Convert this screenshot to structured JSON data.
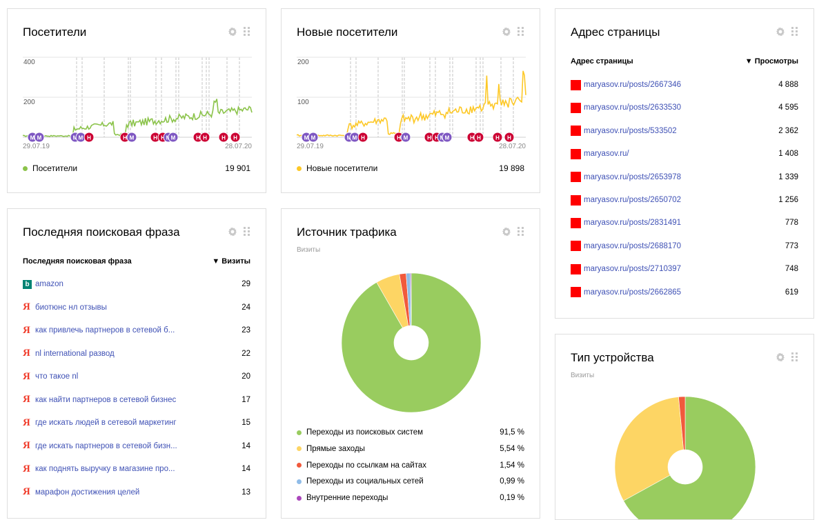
{
  "colors": {
    "green": "#8bc34a",
    "yellow": "#fdc826",
    "red": "#f44336",
    "blue": "#8ab4f8",
    "purple": "#ab47bc",
    "pie_green": "#99cc5f",
    "pie_yellow": "#fdd564",
    "pie_red": "#f15a3c",
    "pie_blue": "#90bce8",
    "link": "#3f51b5",
    "marker_m": "#7e57c2",
    "marker_h": "#cc0033"
  },
  "visitors": {
    "title": "Посетители",
    "y_ticks": [
      "400",
      "200"
    ],
    "date_start": "29.07.19",
    "date_end": "28.07.20",
    "legend_label": "Посетители",
    "legend_value": "19 901",
    "marker_m": "М",
    "marker_h": "Н"
  },
  "new_visitors": {
    "title": "Новые посетители",
    "y_ticks": [
      "200",
      "100"
    ],
    "date_start": "29.07.19",
    "date_end": "28.07.20",
    "legend_label": "Новые посетители",
    "legend_value": "19 898"
  },
  "page_address": {
    "title": "Адрес страницы",
    "col_name": "Адрес страницы",
    "col_value": "▼ Просмотры",
    "rows": [
      {
        "url": "maryasov.ru/posts/2667346",
        "views": "4 888"
      },
      {
        "url": "maryasov.ru/posts/2633530",
        "views": "4 595"
      },
      {
        "url": "maryasov.ru/posts/533502",
        "views": "2 362"
      },
      {
        "url": "maryasov.ru/",
        "views": "1 408"
      },
      {
        "url": "maryasov.ru/posts/2653978",
        "views": "1 339"
      },
      {
        "url": "maryasov.ru/posts/2650702",
        "views": "1 256"
      },
      {
        "url": "maryasov.ru/posts/2831491",
        "views": "778"
      },
      {
        "url": "maryasov.ru/posts/2688170",
        "views": "773"
      },
      {
        "url": "maryasov.ru/posts/2710397",
        "views": "748"
      },
      {
        "url": "maryasov.ru/posts/2662865",
        "views": "619"
      }
    ]
  },
  "search_phrase": {
    "title": "Последняя поисковая фраза",
    "col_name": "Последняя поисковая фраза",
    "col_value": "▼ Визиты",
    "bing_letter": "b",
    "yandex_letter": "Я",
    "rows": [
      {
        "engine": "bing",
        "phrase": "amazon",
        "visits": "29"
      },
      {
        "engine": "yandex",
        "phrase": "биотюнс нл отзывы",
        "visits": "24"
      },
      {
        "engine": "yandex",
        "phrase": "как привлечь партнеров в сетевой б...",
        "visits": "23"
      },
      {
        "engine": "yandex",
        "phrase": "nl international развод",
        "visits": "22"
      },
      {
        "engine": "yandex",
        "phrase": "что такое nl",
        "visits": "20"
      },
      {
        "engine": "yandex",
        "phrase": "как найти партнеров в сетевой бизнес",
        "visits": "17"
      },
      {
        "engine": "yandex",
        "phrase": "где искать людей в сетевой маркетинг",
        "visits": "15"
      },
      {
        "engine": "yandex",
        "phrase": "где искать партнеров в сетевой бизн...",
        "visits": "14"
      },
      {
        "engine": "yandex",
        "phrase": "как поднять выручку в магазине про...",
        "visits": "14"
      },
      {
        "engine": "yandex",
        "phrase": "марафон достижения целей",
        "visits": "13"
      }
    ]
  },
  "traffic_source": {
    "title": "Источник трафика",
    "subtitle": "Визиты",
    "items": [
      {
        "label": "Переходы из поисковых систем",
        "value": "91,5 %",
        "share": 91.5,
        "color": "#99cc5f"
      },
      {
        "label": "Прямые заходы",
        "value": "5,54 %",
        "share": 5.54,
        "color": "#fdd564"
      },
      {
        "label": "Переходы по ссылкам на сайтах",
        "value": "1,54 %",
        "share": 1.54,
        "color": "#f15a3c"
      },
      {
        "label": "Переходы из социальных сетей",
        "value": "0,99 %",
        "share": 0.99,
        "color": "#90bce8"
      },
      {
        "label": "Внутренние переходы",
        "value": "0,19 %",
        "share": 0.19,
        "color": "#ab47bc"
      }
    ]
  },
  "device_type": {
    "title": "Тип устройства",
    "subtitle": "Визиты",
    "slices": [
      {
        "share": 67.0,
        "color": "#99cc5f"
      },
      {
        "share": 31.5,
        "color": "#fdd564"
      },
      {
        "share": 1.5,
        "color": "#f15a3c"
      }
    ]
  }
}
